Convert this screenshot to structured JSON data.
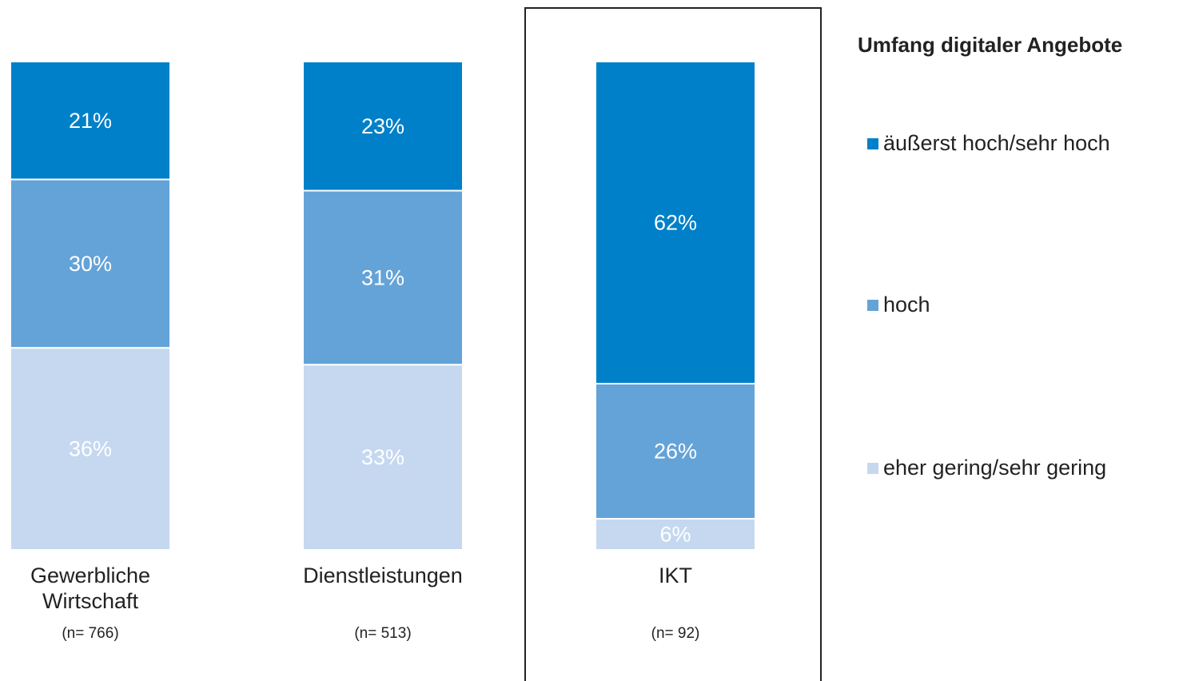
{
  "chart_data": {
    "type": "bar",
    "stacked": true,
    "normalized": true,
    "legend_title": "Umfang digitaler Angebote",
    "categories": [
      "Gewerbliche Wirtschaft",
      "Dienstleistungen",
      "IKT"
    ],
    "sample_sizes": [
      "(n= 766)",
      "(n= 513)",
      "(n= 92)"
    ],
    "highlight": "IKT",
    "series": [
      {
        "name": "äußerst hoch/sehr hoch",
        "color": "#0080c8",
        "values": [
          21,
          23,
          62
        ],
        "value_labels": [
          "21%",
          "23%",
          "62%"
        ]
      },
      {
        "name": "hoch",
        "color": "#64a3d8",
        "values": [
          30,
          31,
          26
        ],
        "value_labels": [
          "30%",
          "31%",
          "26%"
        ]
      },
      {
        "name": "eher gering/sehr gering",
        "color": "#c5d8f0",
        "values": [
          36,
          33,
          6
        ],
        "value_labels": [
          "36%",
          "33%",
          "6%"
        ]
      }
    ]
  }
}
